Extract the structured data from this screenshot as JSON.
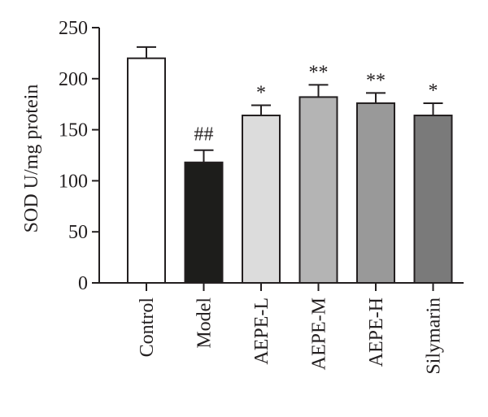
{
  "chart_data": {
    "type": "bar",
    "title": "",
    "xlabel": "",
    "ylabel": "SOD U/mg protein",
    "ylim": [
      0,
      250
    ],
    "yticks": [
      0,
      50,
      100,
      150,
      200,
      250
    ],
    "grid": false,
    "categories": [
      "Control",
      "Model",
      "AEPE-L",
      "AEPE-M",
      "AEPE-H",
      "Silymarin"
    ],
    "values": [
      220,
      118,
      164,
      182,
      176,
      164
    ],
    "error_bars": [
      11,
      12,
      10,
      12,
      10,
      12
    ],
    "significance": [
      "",
      "##",
      "*",
      "**",
      "**",
      "*"
    ],
    "bar_colors": [
      "#ffffff",
      "#1d1d1b",
      "#dcdcdc",
      "#b4b4b4",
      "#999999",
      "#7a7a7a"
    ],
    "edge_color": "#231f20"
  }
}
